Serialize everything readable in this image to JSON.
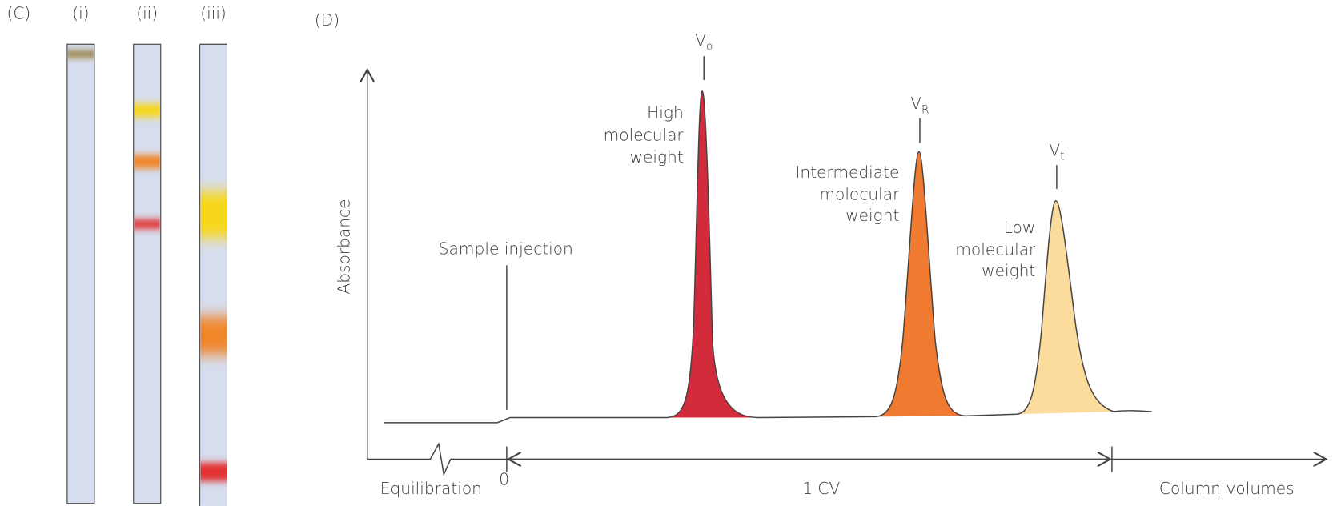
{
  "panel_c": {
    "label": "(C)",
    "columns": [
      "(i)",
      "(ii)",
      "(iii)"
    ]
  },
  "panel_d": {
    "label": "(D)",
    "y_axis_label": "Absorbance",
    "x_axis_label": "Column volumes",
    "sample_injection": "Sample injection",
    "equilibration": "Equilibration",
    "zero": "0",
    "span": "1 CV",
    "peaks": [
      {
        "marker": "V",
        "subscript": "o",
        "label_lines": [
          "High",
          "molecular",
          "weight"
        ]
      },
      {
        "marker": "V",
        "subscript": "R",
        "label_lines": [
          "Intermediate",
          "molecular",
          "weight"
        ]
      },
      {
        "marker": "V",
        "subscript": "t",
        "label_lines": [
          "Low",
          "molecular",
          "weight"
        ]
      }
    ]
  }
}
